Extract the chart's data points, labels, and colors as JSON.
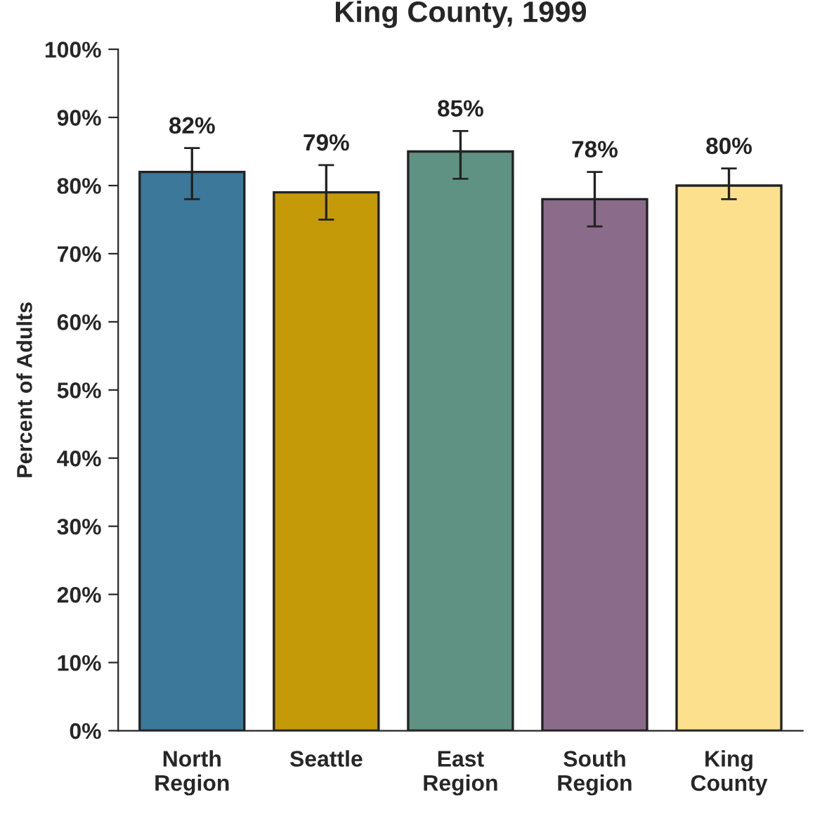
{
  "chart_data": {
    "type": "bar",
    "title": "King County, 1999",
    "ylabel": "Percent of Adults",
    "categories": [
      "North\nRegion",
      "Seattle",
      "East\nRegion",
      "South\nRegion",
      "King\nCounty"
    ],
    "values": [
      82,
      79,
      85,
      78,
      80
    ],
    "colors": [
      "#3b7899",
      "#c49a08",
      "#5f9282",
      "#8b6b8a",
      "#fde08e"
    ],
    "errors": [
      [
        78,
        85.5
      ],
      [
        75,
        83
      ],
      [
        81,
        88
      ],
      [
        74,
        82
      ],
      [
        78,
        82.5
      ]
    ],
    "value_labels": [
      "82%",
      "79%",
      "85%",
      "78%",
      "80%"
    ],
    "ylim": [
      0,
      100
    ],
    "yticks": [
      {
        "value": 0,
        "label": "0%"
      },
      {
        "value": 10,
        "label": "10%"
      },
      {
        "value": 20,
        "label": "20%"
      },
      {
        "value": 30,
        "label": "30%"
      },
      {
        "value": 40,
        "label": "40%"
      },
      {
        "value": 50,
        "label": "50%"
      },
      {
        "value": 60,
        "label": "60%"
      },
      {
        "value": 70,
        "label": "70%"
      },
      {
        "value": 80,
        "label": "80%"
      },
      {
        "value": 90,
        "label": "90%"
      },
      {
        "value": 100,
        "label": "100%"
      }
    ],
    "grid": false,
    "legend": false
  }
}
